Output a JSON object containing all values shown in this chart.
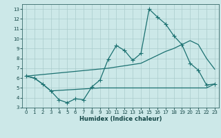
{
  "xlabel": "Humidex (Indice chaleur)",
  "bg_color": "#cce8e8",
  "grid_color": "#aacccc",
  "line_color": "#1a7070",
  "xlim": [
    -0.5,
    23.5
  ],
  "ylim": [
    3,
    13.5
  ],
  "yticks": [
    3,
    4,
    5,
    6,
    7,
    8,
    9,
    10,
    11,
    12,
    13
  ],
  "xticks": [
    0,
    1,
    2,
    3,
    4,
    5,
    6,
    7,
    8,
    9,
    10,
    11,
    12,
    13,
    14,
    15,
    16,
    17,
    18,
    19,
    20,
    21,
    22,
    23
  ],
  "line1_x": [
    0,
    1,
    2,
    3,
    4,
    5,
    6,
    7,
    8,
    9,
    10,
    11,
    12,
    13,
    14,
    15,
    16,
    17,
    18,
    19,
    20,
    21,
    22,
    23
  ],
  "line1_y": [
    6.2,
    6.0,
    5.4,
    4.7,
    3.8,
    3.5,
    3.9,
    3.8,
    5.1,
    5.8,
    7.9,
    9.3,
    8.8,
    7.8,
    8.5,
    13.0,
    12.2,
    11.5,
    10.3,
    9.4,
    7.5,
    6.8,
    5.3,
    5.4
  ],
  "line2_x": [
    0,
    10,
    14,
    15,
    16,
    17,
    18,
    19,
    20,
    21,
    22,
    23
  ],
  "line2_y": [
    6.2,
    7.0,
    7.5,
    7.9,
    8.3,
    8.7,
    9.0,
    9.4,
    9.8,
    9.4,
    8.0,
    6.9
  ],
  "line3_x": [
    0,
    1,
    2,
    3,
    9,
    10,
    19,
    20,
    21,
    22,
    23
  ],
  "line3_y": [
    6.2,
    6.0,
    5.4,
    4.7,
    5.0,
    5.0,
    5.0,
    5.0,
    5.0,
    5.0,
    5.4
  ],
  "xlabel_fontsize": 6,
  "tick_fontsize": 5
}
